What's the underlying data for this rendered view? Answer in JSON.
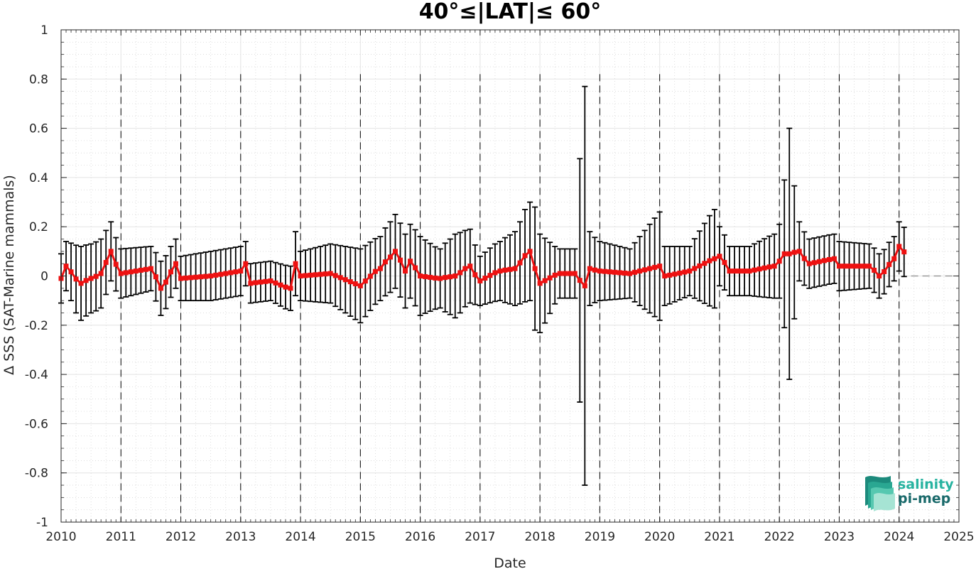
{
  "chart_data": {
    "type": "line",
    "title": "40°≤|LAT|≤ 60°",
    "xlabel": "Date",
    "ylabel": "Δ SSS (SAT-Marine mammals)",
    "xlim": [
      2010,
      2025
    ],
    "ylim": [
      -1,
      1
    ],
    "xticks": [
      "2010",
      "2011",
      "2012",
      "2013",
      "2014",
      "2015",
      "2016",
      "2017",
      "2018",
      "2019",
      "2020",
      "2021",
      "2022",
      "2023",
      "2024",
      "2025"
    ],
    "yticks": [
      "-1",
      "-0.8",
      "-0.6",
      "-0.4",
      "-0.2",
      "0",
      "0.2",
      "0.4",
      "0.6",
      "0.8",
      "1"
    ],
    "grid": true,
    "year_dividers": true,
    "zero_reference_line": true,
    "series": [
      {
        "color": "#ee1111",
        "marker": "square",
        "error_bar_color": "#000000",
        "anchors": [
          {
            "x": 2010.0,
            "y": -0.01,
            "err": 0.1
          },
          {
            "x": 2010.1,
            "y": 0.04,
            "err": 0.1
          },
          {
            "x": 2010.3,
            "y": -0.03,
            "err": 0.15
          },
          {
            "x": 2010.5,
            "y": -0.01,
            "err": 0.14
          },
          {
            "x": 2010.7,
            "y": 0.01,
            "err": 0.14
          },
          {
            "x": 2010.8,
            "y": 0.1,
            "err": 0.12
          },
          {
            "x": 2011.0,
            "y": 0.01,
            "err": 0.1
          },
          {
            "x": 2011.5,
            "y": 0.03,
            "err": 0.09
          },
          {
            "x": 2011.7,
            "y": -0.05,
            "err": 0.11
          },
          {
            "x": 2011.9,
            "y": 0.05,
            "err": 0.1
          },
          {
            "x": 2012.0,
            "y": -0.01,
            "err": 0.09
          },
          {
            "x": 2012.5,
            "y": 0.0,
            "err": 0.1
          },
          {
            "x": 2013.0,
            "y": 0.02,
            "err": 0.1
          },
          {
            "x": 2013.05,
            "y": 0.05,
            "err": 0.09
          },
          {
            "x": 2013.15,
            "y": -0.03,
            "err": 0.08
          },
          {
            "x": 2013.5,
            "y": -0.02,
            "err": 0.08
          },
          {
            "x": 2013.8,
            "y": -0.05,
            "err": 0.09
          },
          {
            "x": 2013.92,
            "y": 0.05,
            "err": 0.13
          },
          {
            "x": 2014.0,
            "y": 0.0,
            "err": 0.1
          },
          {
            "x": 2014.5,
            "y": 0.01,
            "err": 0.12
          },
          {
            "x": 2015.0,
            "y": -0.04,
            "err": 0.15
          },
          {
            "x": 2015.3,
            "y": 0.03,
            "err": 0.13
          },
          {
            "x": 2015.6,
            "y": 0.1,
            "err": 0.15
          },
          {
            "x": 2015.75,
            "y": 0.02,
            "err": 0.15
          },
          {
            "x": 2015.85,
            "y": 0.06,
            "err": 0.15
          },
          {
            "x": 2016.0,
            "y": 0.0,
            "err": 0.16
          },
          {
            "x": 2016.3,
            "y": -0.01,
            "err": 0.12
          },
          {
            "x": 2016.6,
            "y": 0.0,
            "err": 0.17
          },
          {
            "x": 2016.8,
            "y": 0.04,
            "err": 0.15
          },
          {
            "x": 2017.0,
            "y": -0.02,
            "err": 0.1
          },
          {
            "x": 2017.3,
            "y": 0.02,
            "err": 0.12
          },
          {
            "x": 2017.6,
            "y": 0.03,
            "err": 0.15
          },
          {
            "x": 2017.8,
            "y": 0.1,
            "err": 0.2
          },
          {
            "x": 2017.9,
            "y": 0.03,
            "err": 0.25
          },
          {
            "x": 2018.0,
            "y": -0.03,
            "err": 0.2
          },
          {
            "x": 2018.3,
            "y": 0.01,
            "err": 0.1
          },
          {
            "x": 2018.6,
            "y": 0.01,
            "err": 0.1
          },
          {
            "x": 2018.72,
            "y": -0.04,
            "err": 0.81
          },
          {
            "x": 2018.8,
            "y": 0.03,
            "err": 0.15
          },
          {
            "x": 2019.0,
            "y": 0.02,
            "err": 0.12
          },
          {
            "x": 2019.5,
            "y": 0.01,
            "err": 0.1
          },
          {
            "x": 2020.0,
            "y": 0.04,
            "err": 0.22
          },
          {
            "x": 2020.1,
            "y": 0.0,
            "err": 0.12
          },
          {
            "x": 2020.5,
            "y": 0.02,
            "err": 0.1
          },
          {
            "x": 2020.9,
            "y": 0.07,
            "err": 0.2
          },
          {
            "x": 2021.0,
            "y": 0.08,
            "err": 0.12
          },
          {
            "x": 2021.2,
            "y": 0.02,
            "err": 0.1
          },
          {
            "x": 2021.5,
            "y": 0.02,
            "err": 0.1
          },
          {
            "x": 2021.9,
            "y": 0.04,
            "err": 0.13
          },
          {
            "x": 2022.0,
            "y": 0.06,
            "err": 0.15
          },
          {
            "x": 2022.1,
            "y": 0.09,
            "err": 0.3
          },
          {
            "x": 2022.17,
            "y": 0.09,
            "err": 0.51
          },
          {
            "x": 2022.3,
            "y": 0.1,
            "err": 0.12
          },
          {
            "x": 2022.5,
            "y": 0.05,
            "err": 0.1
          },
          {
            "x": 2022.9,
            "y": 0.07,
            "err": 0.1
          },
          {
            "x": 2023.0,
            "y": 0.04,
            "err": 0.1
          },
          {
            "x": 2023.5,
            "y": 0.04,
            "err": 0.09
          },
          {
            "x": 2023.7,
            "y": 0.0,
            "err": 0.09
          },
          {
            "x": 2023.9,
            "y": 0.07,
            "err": 0.09
          },
          {
            "x": 2024.0,
            "y": 0.12,
            "err": 0.1
          },
          {
            "x": 2024.15,
            "y": 0.08,
            "err": 0.1
          }
        ]
      }
    ]
  },
  "logo": {
    "line1": "salinity",
    "line2": "pi-mep",
    "color_line1": "#27b3a0",
    "color_line2": "#1a6a6b"
  }
}
